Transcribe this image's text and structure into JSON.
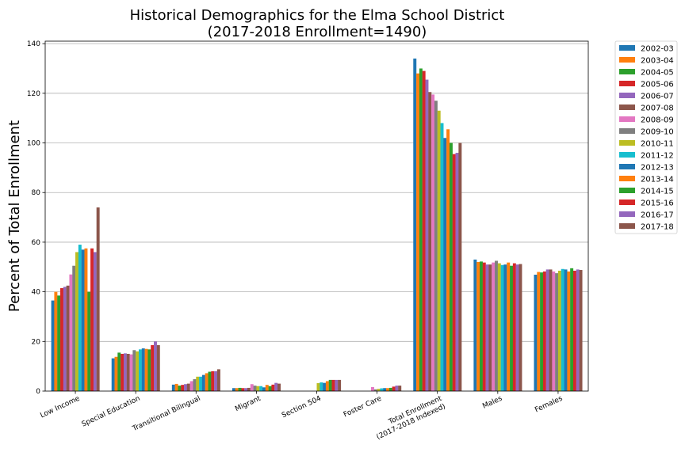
{
  "chart_data": {
    "type": "bar",
    "title": [
      "Historical Demographics for the Elma School District",
      "(2017-2018 Enrollment=1490)"
    ],
    "xlabel": "",
    "ylabel": "Percent of Total Enrollment",
    "ylim": [
      0,
      141
    ],
    "yticks": [
      0,
      20,
      40,
      60,
      80,
      100,
      120,
      140
    ],
    "grid": "horizontal",
    "legend_position": "outside-right",
    "categories": [
      [
        "Low Income"
      ],
      [
        "Special Education"
      ],
      [
        "Transitional Bilingual"
      ],
      [
        "Migrant"
      ],
      [
        "Section 504"
      ],
      [
        "Foster Care"
      ],
      [
        "Total Enrollment",
        "(2017-2018 Indexed)"
      ],
      [
        "Males"
      ],
      [
        "Females"
      ]
    ],
    "series": [
      {
        "name": "2002-03",
        "color": "#1f77b4",
        "values": [
          36.5,
          13.2,
          2.6,
          1.2,
          0,
          0,
          134.0,
          53.0,
          46.9
        ]
      },
      {
        "name": "2003-04",
        "color": "#ff7f0e",
        "values": [
          40.0,
          13.8,
          2.9,
          1.2,
          0,
          0,
          128.0,
          52.0,
          48.0
        ]
      },
      {
        "name": "2004-05",
        "color": "#2ca02c",
        "values": [
          38.5,
          15.5,
          2.2,
          1.3,
          0,
          0,
          130.0,
          52.2,
          47.8
        ]
      },
      {
        "name": "2005-06",
        "color": "#d62728",
        "values": [
          41.5,
          15.0,
          2.5,
          1.2,
          0,
          0,
          129.0,
          51.8,
          48.2
        ]
      },
      {
        "name": "2006-07",
        "color": "#9467bd",
        "values": [
          42.0,
          15.2,
          2.8,
          1.2,
          0,
          0,
          125.5,
          51.0,
          49.0
        ]
      },
      {
        "name": "2007-08",
        "color": "#8c564b",
        "values": [
          42.5,
          15.0,
          3.0,
          1.3,
          0,
          0,
          120.5,
          51.0,
          49.0
        ]
      },
      {
        "name": "2008-09",
        "color": "#e377c2",
        "values": [
          47.0,
          14.8,
          4.0,
          2.8,
          0,
          1.6,
          119.5,
          51.8,
          48.2
        ]
      },
      {
        "name": "2009-10",
        "color": "#7f7f7f",
        "values": [
          50.5,
          16.5,
          4.8,
          2.2,
          0,
          0.7,
          117.0,
          52.5,
          47.5
        ]
      },
      {
        "name": "2010-11",
        "color": "#bcbd22",
        "values": [
          56.0,
          16.0,
          5.8,
          2.0,
          3.2,
          0.9,
          113.0,
          51.5,
          48.5
        ]
      },
      {
        "name": "2011-12",
        "color": "#17becf",
        "values": [
          59.0,
          16.8,
          5.8,
          2.0,
          3.5,
          1.1,
          108.0,
          50.8,
          49.2
        ]
      },
      {
        "name": "2012-13",
        "color": "#1f77b4",
        "values": [
          57.0,
          17.2,
          6.5,
          1.5,
          3.3,
          1.2,
          102.0,
          51.0,
          49.0
        ]
      },
      {
        "name": "2013-14",
        "color": "#ff7f0e",
        "values": [
          57.5,
          17.0,
          7.2,
          2.5,
          4.0,
          1.2,
          105.5,
          51.8,
          48.2
        ]
      },
      {
        "name": "2014-15",
        "color": "#2ca02c",
        "values": [
          40.0,
          16.8,
          7.8,
          2.0,
          4.5,
          1.3,
          100.0,
          50.5,
          49.5
        ]
      },
      {
        "name": "2015-16",
        "color": "#d62728",
        "values": [
          57.5,
          18.5,
          8.0,
          2.6,
          4.5,
          1.8,
          95.5,
          51.5,
          48.5
        ]
      },
      {
        "name": "2016-17",
        "color": "#9467bd",
        "values": [
          56.0,
          20.0,
          8.0,
          3.3,
          4.5,
          2.2,
          96.0,
          51.0,
          49.0
        ]
      },
      {
        "name": "2017-18",
        "color": "#8c564b",
        "values": [
          74.0,
          18.5,
          8.8,
          3.0,
          4.5,
          2.2,
          100.0,
          51.2,
          48.8
        ]
      }
    ]
  }
}
